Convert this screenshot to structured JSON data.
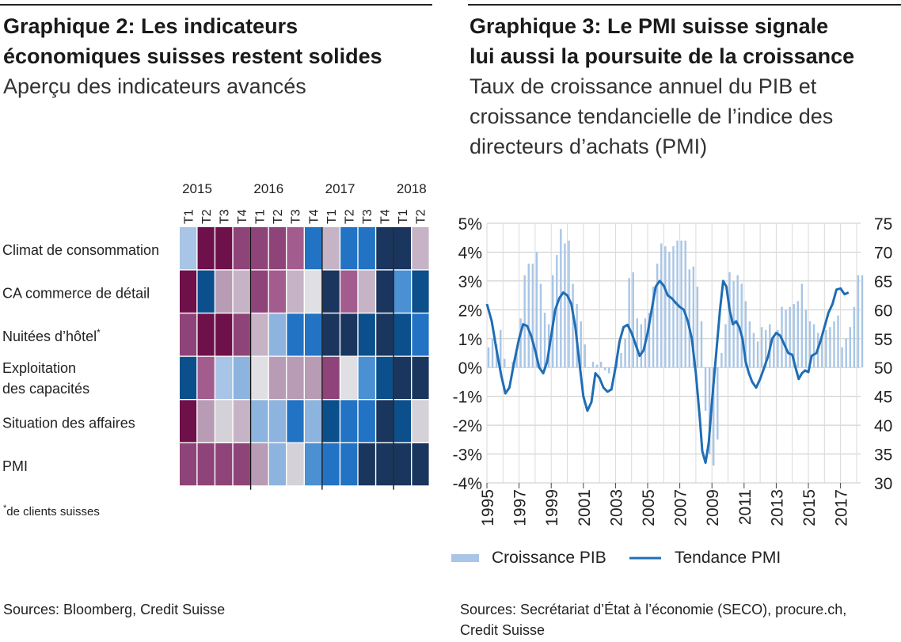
{
  "left": {
    "title_line1": "Graphique 2: Les indicateurs",
    "title_line2": "économiques suisses restent solides",
    "subtitle": "Aperçu des indicateurs avancés",
    "footnote_mark": "*",
    "footnote": "de clients suisses",
    "source": "Sources: Bloomberg, Credit Suisse"
  },
  "right": {
    "title_line1": "Graphique 3: Le PMI suisse signale",
    "title_line2": "lui aussi la poursuite de la croissance",
    "subtitle_line1": "Taux de croissance annuel du PIB et",
    "subtitle_line2": "croissance tendancielle de l’indice des",
    "subtitle_line3": "directeurs d’achats (PMI)",
    "source_line1": "Sources: Secrétariat d’État à l’économie (SECO), procure.ch,",
    "source_line2": "Credit Suisse"
  },
  "colors": {
    "purple_dark": "#6e1049",
    "purple": "#8e4478",
    "purple_mid": "#a25d8e",
    "mauve": "#b89bb4",
    "light_mauve": "#c6b4c6",
    "grey_light": "#d5d1d8",
    "pale_grey": "#e0dfe4",
    "light_blue": "#a8c4e6",
    "blue_light": "#8db4de",
    "blue_mid": "#4a90d2",
    "blue": "#2273c4",
    "navy_blue": "#0b4f8c",
    "navy": "#1a365e",
    "dark_navy": "#183258",
    "series_bar": "#a9c6e6",
    "series_line": "#1f6db5"
  },
  "chart_data": [
    {
      "type": "heatmap",
      "years": [
        "2015",
        "2016",
        "2017",
        "2018"
      ],
      "columns": [
        "T1",
        "T2",
        "T3",
        "T4",
        "T1",
        "T2",
        "T3",
        "T4",
        "T1",
        "T2",
        "T3",
        "T4",
        "T1",
        "T2"
      ],
      "rows": [
        {
          "label": "Climat de consommation",
          "cells": [
            "light_blue",
            "purple_dark",
            "purple_dark",
            "purple",
            "purple",
            "purple",
            "purple_mid",
            "blue",
            "light_mauve",
            "blue",
            "blue",
            "navy",
            "navy",
            "light_mauve"
          ]
        },
        {
          "label": "CA commerce de détail",
          "cells": [
            "purple_dark",
            "navy_blue",
            "mauve",
            "light_mauve",
            "purple",
            "purple_mid",
            "light_mauve",
            "pale_grey",
            "navy",
            "purple_mid",
            "light_mauve",
            "navy",
            "blue_mid",
            "navy_blue"
          ]
        },
        {
          "label": "Nuitées d’hôtel",
          "label_mark": "*",
          "cells": [
            "purple",
            "purple_dark",
            "purple_dark",
            "purple",
            "light_mauve",
            "blue_light",
            "blue",
            "blue",
            "navy",
            "navy",
            "navy_blue",
            "navy",
            "navy_blue",
            "blue"
          ]
        },
        {
          "label_line1": "Exploitation",
          "label_line2": "des capacités",
          "cells": [
            "navy_blue",
            "purple_mid",
            "light_blue",
            "blue_light",
            "pale_grey",
            "mauve",
            "mauve",
            "mauve",
            "purple",
            "pale_grey",
            "blue_mid",
            "navy_blue",
            "navy",
            "navy"
          ]
        },
        {
          "label": "Situation des affaires",
          "cells": [
            "purple_dark",
            "mauve",
            "grey_light",
            "light_mauve",
            "blue_light",
            "blue_light",
            "blue",
            "blue_light",
            "navy_blue",
            "blue",
            "blue",
            "navy",
            "navy_blue",
            "grey_light"
          ]
        },
        {
          "label": "PMI",
          "cells": [
            "purple",
            "purple",
            "purple",
            "purple",
            "mauve",
            "blue_light",
            "grey_light",
            "blue_mid",
            "blue",
            "blue",
            "navy",
            "navy",
            "navy",
            "navy"
          ]
        }
      ]
    },
    {
      "type": "bar+line",
      "x_ticks": [
        "1995",
        "1997",
        "1999",
        "2001",
        "2003",
        "2005",
        "2007",
        "2009",
        "2011",
        "2013",
        "2015",
        "2017"
      ],
      "x_range": [
        1995,
        2018.25
      ],
      "y_left_ticks": [
        "5%",
        "4%",
        "3%",
        "2%",
        "1%",
        "0%",
        "-1%",
        "-2%",
        "-3%",
        "-4%"
      ],
      "y_left_range": [
        -4,
        5
      ],
      "y_right_ticks": [
        "75",
        "70",
        "65",
        "60",
        "55",
        "50",
        "45",
        "40",
        "35",
        "30"
      ],
      "y_right_range": [
        30,
        75
      ],
      "grid": true,
      "legend_position": "bottom",
      "series": [
        {
          "name": "Croissance PIB",
          "kind": "bar",
          "axis": "left",
          "values": [
            0.7,
            1.0,
            0.8,
            1.3,
            0.3,
            0.0,
            0.2,
            0.5,
            1.7,
            3.2,
            3.6,
            3.6,
            4.0,
            2.9,
            1.9,
            1.5,
            3.2,
            3.9,
            4.8,
            4.3,
            4.4,
            2.9,
            2.2,
            1.6,
            0.8,
            0.0,
            0.2,
            0.1,
            0.2,
            -0.1,
            -0.2,
            0.0,
            0.3,
            0.5,
            1.0,
            3.1,
            3.3,
            1.7,
            1.5,
            1.7,
            1.9,
            2.8,
            3.6,
            4.3,
            4.2,
            4.0,
            4.2,
            4.4,
            4.4,
            4.4,
            3.4,
            3.5,
            2.8,
            1.6,
            -1.5,
            -3.0,
            -3.4,
            -2.5,
            0.5,
            1.5,
            3.3,
            3.0,
            3.2,
            2.9,
            2.3,
            1.6,
            1.2,
            0.9,
            1.4,
            1.3,
            1.5,
            1.1,
            1.3,
            2.1,
            2.0,
            2.1,
            2.2,
            2.3,
            2.9,
            2.0,
            1.6,
            1.5,
            1.2,
            1.1,
            1.3,
            1.4,
            1.6,
            1.8,
            0.7,
            1.0,
            1.4,
            2.1,
            3.2,
            3.2
          ]
        },
        {
          "name": "Tendance PMI",
          "kind": "line",
          "axis": "right",
          "points": [
            [
              1995,
              61
            ],
            [
              1995.3,
              58
            ],
            [
              1995.6,
              53
            ],
            [
              1995.9,
              48.5
            ],
            [
              1996.15,
              45.5
            ],
            [
              1996.4,
              46.5
            ],
            [
              1996.7,
              51
            ],
            [
              1997,
              55
            ],
            [
              1997.25,
              57.5
            ],
            [
              1997.5,
              57.2
            ],
            [
              1997.75,
              55.5
            ],
            [
              1998,
              53
            ],
            [
              1998.25,
              50
            ],
            [
              1998.5,
              49
            ],
            [
              1998.75,
              51
            ],
            [
              1999,
              55.5
            ],
            [
              1999.25,
              60
            ],
            [
              1999.5,
              62
            ],
            [
              1999.75,
              63
            ],
            [
              2000,
              62.5
            ],
            [
              2000.25,
              61
            ],
            [
              2000.5,
              57
            ],
            [
              2000.75,
              51
            ],
            [
              2001,
              45
            ],
            [
              2001.25,
              42.5
            ],
            [
              2001.5,
              44
            ],
            [
              2001.75,
              49
            ],
            [
              2002,
              48.2
            ],
            [
              2002.25,
              46.5
            ],
            [
              2002.5,
              45.8
            ],
            [
              2002.75,
              46.2
            ],
            [
              2003,
              50
            ],
            [
              2003.25,
              54.5
            ],
            [
              2003.5,
              57
            ],
            [
              2003.75,
              57.4
            ],
            [
              2004,
              56
            ],
            [
              2004.25,
              54
            ],
            [
              2004.5,
              52
            ],
            [
              2004.75,
              53
            ],
            [
              2005,
              56
            ],
            [
              2005.25,
              60
            ],
            [
              2005.5,
              64
            ],
            [
              2005.75,
              65
            ],
            [
              2006,
              64.2
            ],
            [
              2006.25,
              62.5
            ],
            [
              2006.5,
              62
            ],
            [
              2006.75,
              61.2
            ],
            [
              2007,
              60.5
            ],
            [
              2007.25,
              60
            ],
            [
              2007.5,
              58
            ],
            [
              2007.75,
              55
            ],
            [
              2008,
              49
            ],
            [
              2008.25,
              41
            ],
            [
              2008.4,
              35.5
            ],
            [
              2008.6,
              33.5
            ],
            [
              2008.8,
              37
            ],
            [
              2009,
              44
            ],
            [
              2009.25,
              52
            ],
            [
              2009.5,
              60
            ],
            [
              2009.7,
              65
            ],
            [
              2009.9,
              64
            ],
            [
              2010.1,
              60
            ],
            [
              2010.3,
              57.5
            ],
            [
              2010.5,
              58
            ],
            [
              2010.7,
              57
            ],
            [
              2010.9,
              55
            ],
            [
              2011.1,
              51
            ],
            [
              2011.3,
              49
            ],
            [
              2011.5,
              47.5
            ],
            [
              2011.75,
              46.5
            ],
            [
              2012,
              48
            ],
            [
              2012.25,
              50
            ],
            [
              2012.5,
              52
            ],
            [
              2012.75,
              55
            ],
            [
              2013,
              56
            ],
            [
              2013.25,
              55.5
            ],
            [
              2013.5,
              54
            ],
            [
              2013.75,
              52.5
            ],
            [
              2014,
              52.2
            ],
            [
              2014.2,
              50
            ],
            [
              2014.4,
              48
            ],
            [
              2014.6,
              49
            ],
            [
              2014.8,
              49.5
            ],
            [
              2015,
              49.2
            ],
            [
              2015.2,
              52
            ],
            [
              2015.5,
              52.5
            ],
            [
              2015.75,
              54.5
            ],
            [
              2016,
              57
            ],
            [
              2016.25,
              59.5
            ],
            [
              2016.5,
              61
            ],
            [
              2016.75,
              63.5
            ],
            [
              2017,
              63.7
            ],
            [
              2017.25,
              62.7
            ],
            [
              2017.5,
              63
            ]
          ]
        }
      ]
    }
  ]
}
